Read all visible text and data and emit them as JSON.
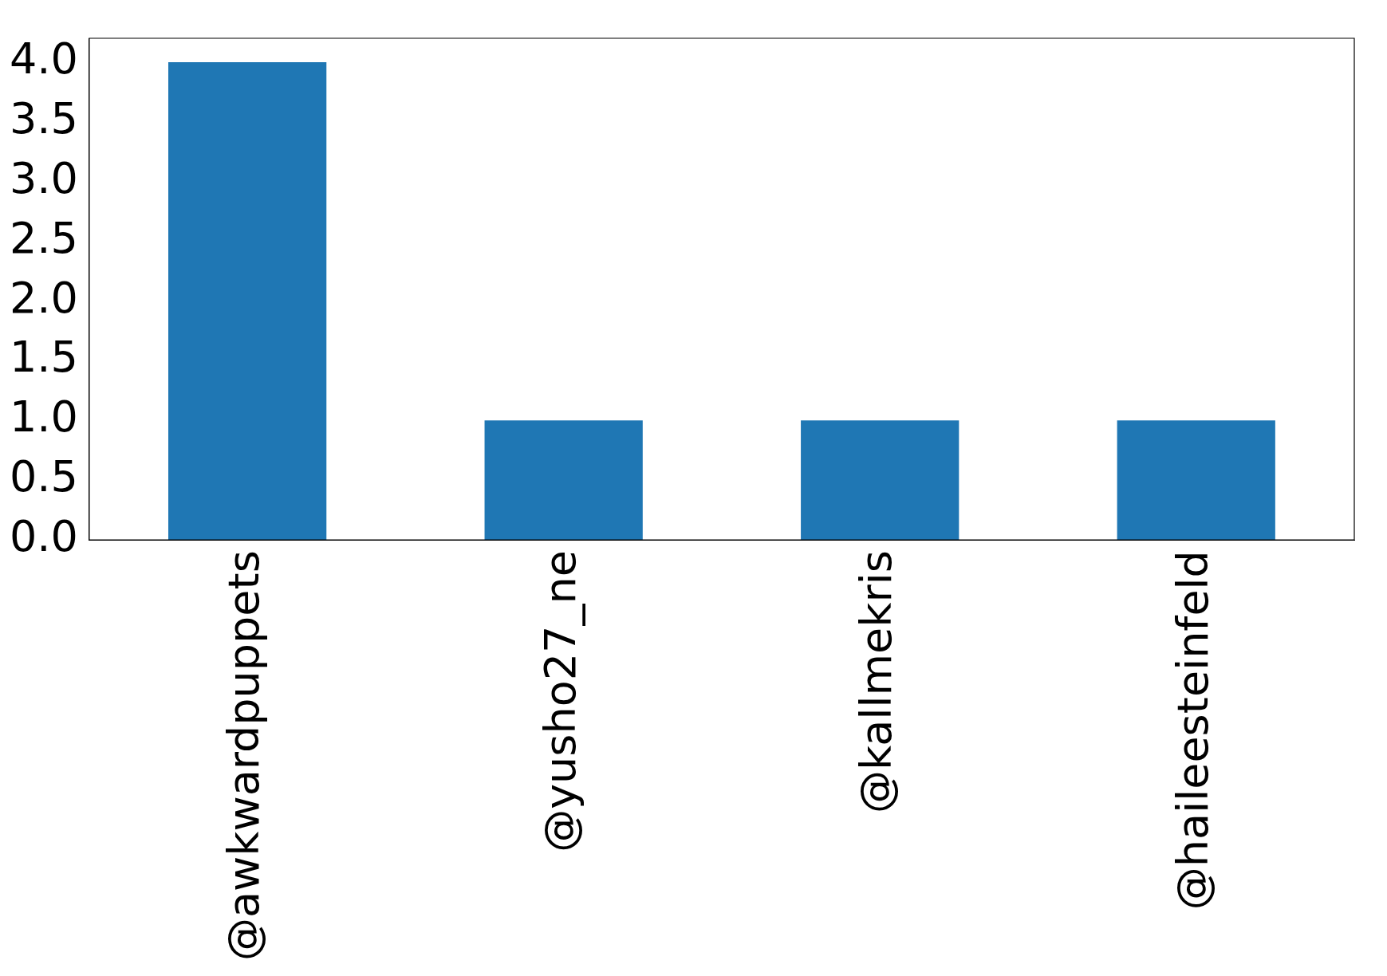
{
  "chart_data": {
    "type": "bar",
    "categories": [
      "@awkwardpuppets",
      "@yusho27_ne",
      "@kallmekris",
      "@haileesteinfeld"
    ],
    "values": [
      4,
      1,
      1,
      1
    ],
    "color": "#1f77b4",
    "ylim": [
      0,
      4.2
    ],
    "yticks": [
      {
        "value": 0,
        "label": "0.0"
      },
      0.5,
      {
        "value": 1,
        "label": "1.0"
      },
      1.5,
      {
        "value": 2,
        "label": "2.0"
      },
      2.5,
      {
        "value": 3,
        "label": "3.0"
      },
      3.5,
      {
        "value": 4,
        "label": "4.0"
      }
    ],
    "grid": false,
    "legend": false
  }
}
